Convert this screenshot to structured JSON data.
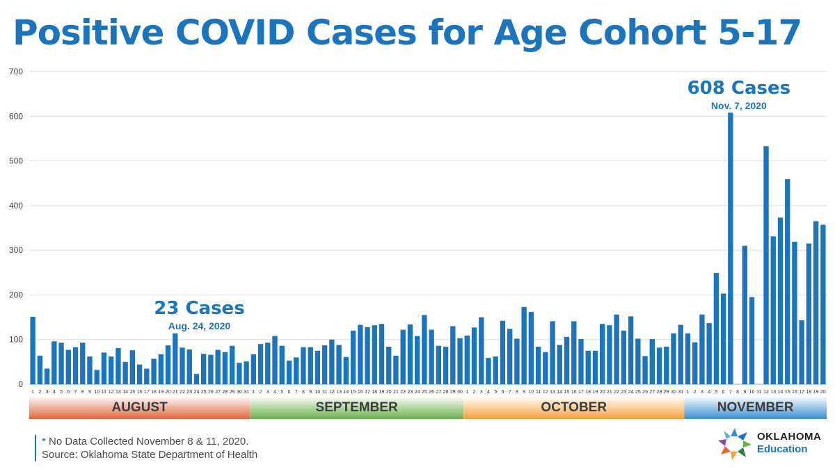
{
  "title": "Positive COVID Cases for Age Cohort 5-17",
  "chart_data": {
    "type": "bar",
    "ylim": [
      0,
      700
    ],
    "yticks": [
      0,
      100,
      200,
      300,
      400,
      500,
      600,
      700
    ],
    "grid": true,
    "bar_color": "#1c75bc",
    "months": [
      {
        "name": "AUGUST",
        "color": "#e0663f",
        "days": [
          1,
          2,
          3,
          4,
          5,
          6,
          7,
          8,
          9,
          10,
          11,
          12,
          13,
          14,
          15,
          16,
          17,
          18,
          19,
          20,
          21,
          22,
          23,
          24,
          25,
          26,
          27,
          28,
          29,
          30,
          31
        ],
        "values": [
          151,
          64,
          35,
          96,
          93,
          77,
          83,
          93,
          62,
          32,
          71,
          62,
          81,
          50,
          76,
          44,
          35,
          57,
          67,
          87,
          114,
          82,
          78,
          23,
          68,
          66,
          77,
          72,
          86,
          48,
          51
        ]
      },
      {
        "name": "SEPTEMBER",
        "color": "#6ab04c",
        "days": [
          1,
          2,
          3,
          4,
          5,
          6,
          7,
          8,
          9,
          10,
          11,
          12,
          13,
          14,
          15,
          16,
          17,
          18,
          19,
          20,
          21,
          22,
          23,
          24,
          25,
          26,
          27,
          28,
          29,
          30
        ],
        "values": [
          67,
          90,
          93,
          108,
          86,
          53,
          60,
          83,
          83,
          75,
          87,
          100,
          88,
          61,
          120,
          133,
          128,
          132,
          135,
          84,
          64,
          122,
          134,
          108,
          155,
          122,
          86,
          84,
          130,
          103
        ]
      },
      {
        "name": "OCTOBER",
        "color": "#f5a23c",
        "days": [
          1,
          2,
          3,
          4,
          5,
          6,
          7,
          8,
          9,
          10,
          11,
          12,
          13,
          14,
          15,
          16,
          17,
          18,
          19,
          20,
          21,
          22,
          23,
          24,
          25,
          26,
          27,
          28,
          29,
          30,
          31
        ],
        "values": [
          109,
          127,
          150,
          59,
          62,
          142,
          124,
          102,
          173,
          162,
          84,
          72,
          141,
          88,
          106,
          141,
          101,
          75,
          75,
          135,
          132,
          156,
          120,
          152,
          102,
          63,
          101,
          82,
          84,
          114,
          133
        ]
      },
      {
        "name": "NOVEMBER",
        "color": "#3a8fd1",
        "days": [
          1,
          2,
          3,
          4,
          5,
          6,
          7,
          8,
          9,
          10,
          11,
          12,
          13,
          14,
          15,
          16,
          17,
          18,
          19,
          20
        ],
        "values": [
          114,
          94,
          156,
          137,
          249,
          203,
          608,
          null,
          310,
          195,
          null,
          533,
          331,
          373,
          459,
          319,
          143,
          315,
          365,
          357
        ]
      }
    ],
    "annotations": [
      {
        "label": "23 Cases",
        "date": "Aug. 24, 2020",
        "month": 0,
        "day": 24,
        "value": 23
      },
      {
        "label": "608 Cases",
        "date": "Nov. 7, 2020",
        "month": 3,
        "day": 7,
        "value": 608
      }
    ]
  },
  "footnote": {
    "line1": "* No Data Collected November 8 & 11, 2020.",
    "line2": "Source: Oklahoma State Department of Health"
  },
  "logo": {
    "line1": "OKLAHOMA",
    "line2": "Education",
    "icon": "oklahoma-star-icon"
  }
}
